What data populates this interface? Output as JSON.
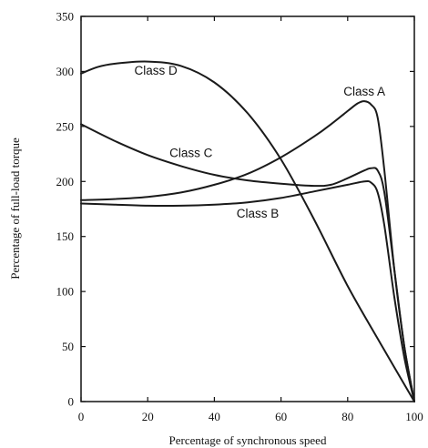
{
  "chart_data": {
    "type": "line",
    "xlabel": "Percentage of synchronous speed",
    "ylabel": "Percentage of full-load torque",
    "xlim": [
      0,
      100
    ],
    "ylim": [
      0,
      350
    ],
    "x_ticks": [
      "0",
      "20",
      "40",
      "60",
      "80",
      "100"
    ],
    "y_ticks": [
      "0",
      "50",
      "100",
      "150",
      "200",
      "250",
      "300",
      "350"
    ],
    "grid": false,
    "legend": "none",
    "series": [
      {
        "name": "Class A",
        "x": [
          0,
          10,
          20,
          30,
          40,
          50,
          60,
          70,
          75,
          80,
          83,
          85,
          87,
          89,
          91,
          94,
          97,
          100
        ],
        "y": [
          183,
          184,
          186,
          190,
          197,
          207,
          222,
          241,
          252,
          264,
          271,
          273,
          270,
          258,
          210,
          120,
          50,
          0
        ]
      },
      {
        "name": "Class B",
        "x": [
          0,
          10,
          20,
          30,
          40,
          50,
          60,
          70,
          80,
          85,
          87,
          89,
          91,
          94,
          97,
          100
        ],
        "y": [
          180,
          179,
          178,
          178,
          179,
          181,
          185,
          191,
          197,
          200,
          199,
          190,
          160,
          95,
          40,
          0
        ]
      },
      {
        "name": "Class C",
        "x": [
          0,
          10,
          20,
          30,
          40,
          50,
          60,
          70,
          75,
          80,
          85,
          87,
          89,
          91,
          94,
          97,
          100
        ],
        "y": [
          252,
          237,
          224,
          214,
          206,
          201,
          198,
          196,
          197,
          203,
          210,
          212,
          210,
          190,
          120,
          50,
          0
        ]
      },
      {
        "name": "Class D",
        "x": [
          0,
          5,
          10,
          20,
          30,
          40,
          50,
          60,
          70,
          80,
          90,
          100
        ],
        "y": [
          298,
          304,
          307,
          309,
          305,
          290,
          262,
          220,
          165,
          105,
          52,
          0
        ]
      }
    ]
  }
}
